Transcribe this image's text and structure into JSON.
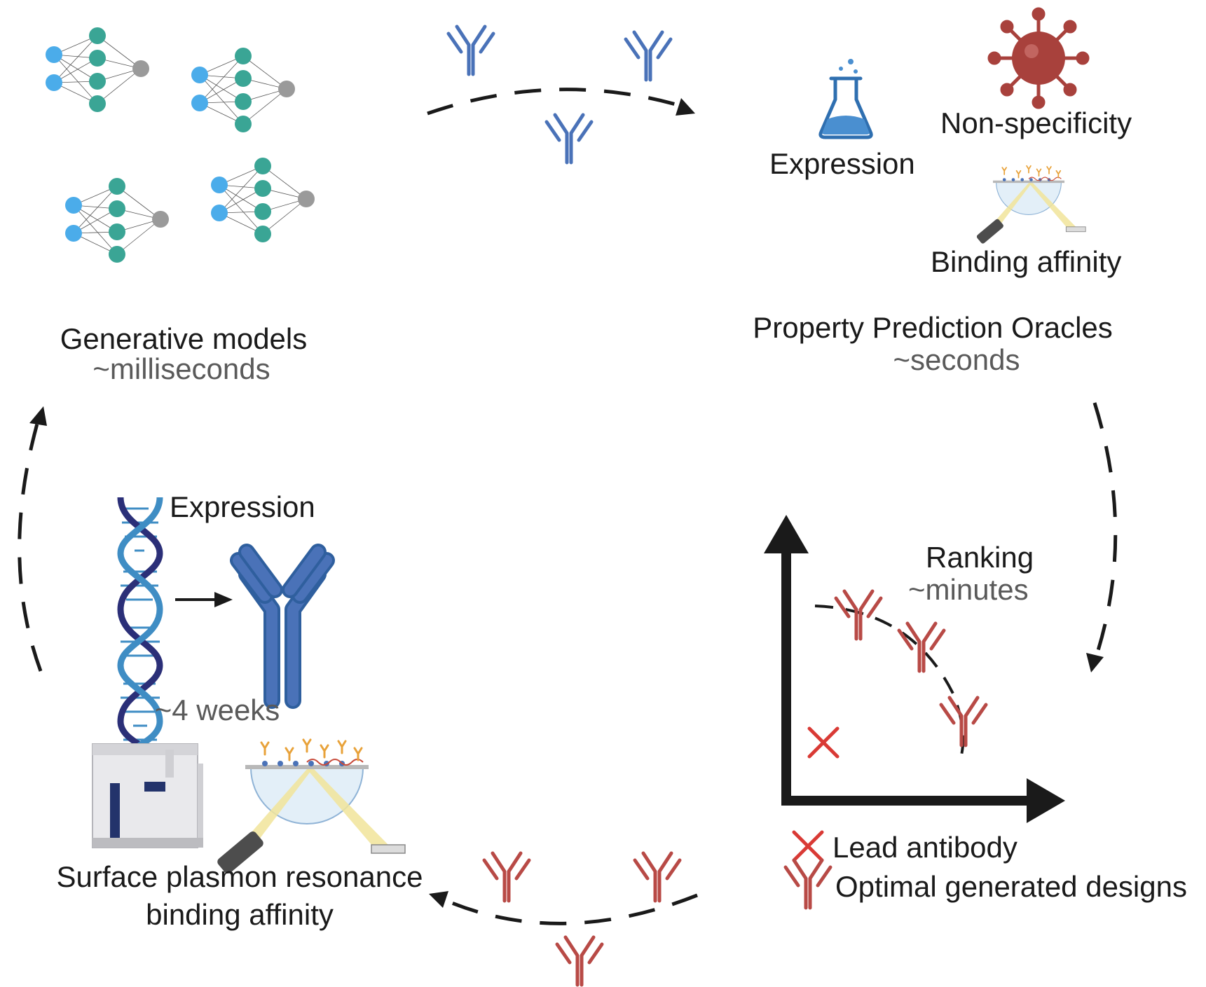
{
  "generative": {
    "title": "Generative models",
    "time": "~milliseconds"
  },
  "oracles": {
    "expression": "Expression",
    "nonspecificity": "Non-specificity",
    "binding": "Binding affinity",
    "title": "Property Prediction Oracles",
    "time": "~seconds"
  },
  "ranking": {
    "title": "Ranking",
    "time": "~minutes"
  },
  "legend": {
    "lead": "Lead antibody",
    "optimal": "Optimal generated designs"
  },
  "lab": {
    "expression": "Expression",
    "time": "~4 weeks",
    "spr_line1": "Surface plasmon resonance",
    "spr_line2": "binding affinity"
  },
  "colors": {
    "blue_antibody": "#4a72b8",
    "red_antibody": "#b84a46",
    "input_node": "#4bacea",
    "hidden_node": "#3aa595",
    "output_node": "#9a9a9a",
    "virus": "#a8413c",
    "dna_dark": "#2b2f78",
    "dna_light": "#3f8dc4"
  }
}
